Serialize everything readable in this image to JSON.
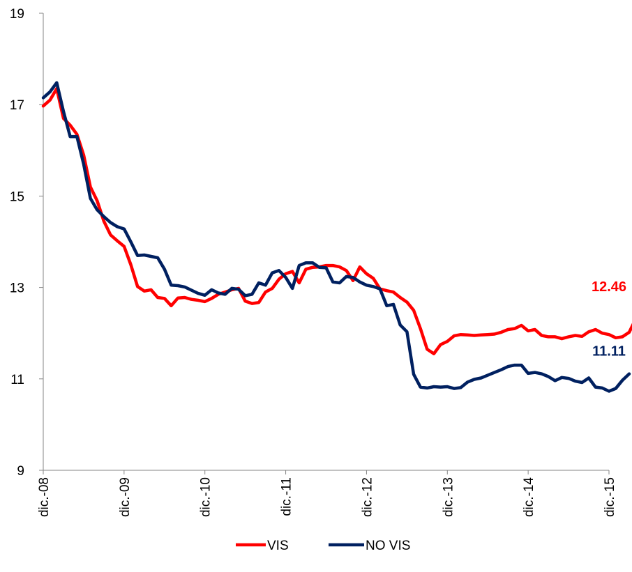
{
  "chart_data": {
    "type": "line",
    "title": "",
    "xlabel": "",
    "ylabel": "",
    "ylim": [
      9,
      19
    ],
    "yticks": [
      9,
      11,
      13,
      15,
      17,
      19
    ],
    "xlim": [
      0,
      84
    ],
    "xticks": [
      {
        "x": 0,
        "label": "dic.-08"
      },
      {
        "x": 12,
        "label": "dic.-09"
      },
      {
        "x": 24,
        "label": "dic.-10"
      },
      {
        "x": 36,
        "label": "dic.-11"
      },
      {
        "x": 48,
        "label": "dic.-12"
      },
      {
        "x": 60,
        "label": "dic.-13"
      },
      {
        "x": 72,
        "label": "dic.-14"
      },
      {
        "x": 84,
        "label": "dic.-15"
      }
    ],
    "grid": false,
    "legend_position": "bottom-center",
    "series": [
      {
        "name": "VIS",
        "color": "#ff0000",
        "end_label": "12.46",
        "values": [
          16.97,
          17.1,
          17.35,
          16.7,
          16.55,
          16.35,
          15.9,
          15.2,
          14.9,
          14.45,
          14.15,
          14.02,
          13.9,
          13.5,
          13.02,
          12.92,
          12.95,
          12.78,
          12.76,
          12.6,
          12.77,
          12.78,
          12.74,
          12.72,
          12.69,
          12.76,
          12.85,
          12.9,
          12.95,
          12.98,
          12.7,
          12.65,
          12.67,
          12.9,
          12.98,
          13.18,
          13.3,
          13.35,
          13.1,
          13.4,
          13.44,
          13.45,
          13.48,
          13.48,
          13.45,
          13.37,
          13.15,
          13.45,
          13.3,
          13.2,
          12.97,
          12.93,
          12.9,
          12.78,
          12.68,
          12.5,
          12.1,
          11.65,
          11.55,
          11.75,
          11.82,
          11.94,
          11.97,
          11.96,
          11.95,
          11.96,
          11.97,
          11.98,
          12.02,
          12.08,
          12.1,
          12.17,
          12.05,
          12.08,
          11.95,
          11.92,
          11.92,
          11.88,
          11.92,
          11.95,
          11.93,
          12.03,
          12.08,
          12.0,
          11.97,
          11.9,
          11.92,
          12.02,
          12.32,
          12.46
        ]
      },
      {
        "name": "NO VIS",
        "color": "#002060",
        "end_label": "11.11",
        "values": [
          17.15,
          17.28,
          17.48,
          16.85,
          16.3,
          16.3,
          15.7,
          14.95,
          14.7,
          14.55,
          14.42,
          14.33,
          14.28,
          14.0,
          13.7,
          13.71,
          13.68,
          13.65,
          13.4,
          13.05,
          13.04,
          13.01,
          12.94,
          12.87,
          12.83,
          12.95,
          12.88,
          12.85,
          12.98,
          12.96,
          12.82,
          12.85,
          13.1,
          13.05,
          13.32,
          13.37,
          13.22,
          12.98,
          13.48,
          13.54,
          13.54,
          13.44,
          13.43,
          13.12,
          13.1,
          13.24,
          13.22,
          13.12,
          13.05,
          13.02,
          12.97,
          12.6,
          12.63,
          12.18,
          12.03,
          11.1,
          10.82,
          10.8,
          10.83,
          10.82,
          10.83,
          10.79,
          10.81,
          10.93,
          10.99,
          11.02,
          11.08,
          11.14,
          11.2,
          11.27,
          11.3,
          11.3,
          11.12,
          11.14,
          11.11,
          11.05,
          10.96,
          11.03,
          11.01,
          10.95,
          10.92,
          11.02,
          10.82,
          10.8,
          10.73,
          10.79,
          10.97,
          11.11
        ]
      }
    ]
  }
}
